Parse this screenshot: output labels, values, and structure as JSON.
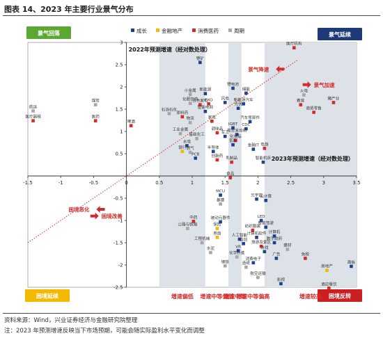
{
  "title": "图表 14、2023 年主要行业景气分布",
  "source": "资料来源：Wind，兴业证券经济与金融研究院整理",
  "note": "注：2023 年预测增速反映当下市场预期，可能会随实际盈利水平变化而调整",
  "colors": {
    "growth": "#1f3f8f",
    "finance": "#f5b800",
    "consumer": "#d42a2a",
    "cyclical": "#a6a6a6",
    "shade": "#dde2e8",
    "quad_tl": "#5aa832",
    "quad_tr": "#1f3a78",
    "quad_bl": "#f5b800",
    "quad_br": "#cc1f1f",
    "annotation": "#d42a2a"
  },
  "chart_data": {
    "type": "scatter",
    "xlim": [
      -1.5,
      3.5
    ],
    "ylim": [
      -2.5,
      3
    ],
    "x_ticks": [
      -1.5,
      -1,
      -0.5,
      0,
      0.5,
      1,
      1.5,
      2,
      2.5,
      3,
      3.5
    ],
    "y_ticks": [
      -2.5,
      -2,
      -1.5,
      -1,
      -0.5,
      0.5,
      1,
      1.5,
      2,
      2.5,
      3
    ],
    "x_tick_labels": [
      "-1.5",
      "-1",
      "-0.5",
      "0",
      "0.5",
      "1",
      "1.5",
      "2",
      "2.5",
      "3",
      "3.5"
    ],
    "y_tick_labels": [
      "-2.5",
      "-2",
      "-1.5",
      "-1",
      "-0.5",
      "0.5",
      "1",
      "1.5",
      "2",
      "2.5",
      "3"
    ],
    "xlabel": "2023年预测增速（经对数处理）",
    "ylabel": "2022年预测增速（经对数处理）",
    "legend": [
      {
        "key": "growth",
        "label": "成长"
      },
      {
        "key": "finance",
        "label": "金融地产"
      },
      {
        "key": "consumer",
        "label": "消费医药"
      },
      {
        "key": "cyclical",
        "label": "周期"
      }
    ],
    "quadrants": {
      "top_left": "景气回落",
      "top_right": "景气延续",
      "bottom_left": "困境延续",
      "bottom_right": "困境反转"
    },
    "annotations": [
      {
        "text": "景气降速",
        "x": 1.85,
        "y": 2.4
      },
      {
        "text": "景气加速",
        "x": 2.85,
        "y": 2.05
      },
      {
        "text": "困境恶化",
        "x": -0.88,
        "y": -0.75
      },
      {
        "text": "困境改善",
        "x": -0.38,
        "y": -0.9
      }
    ],
    "bands": [
      {
        "x0": 0.5,
        "x1": 1.2,
        "label": "增速偏低"
      },
      {
        "x0": 1.2,
        "x1": 1.55,
        "label": "增速中等偏低"
      },
      {
        "x0": 1.55,
        "x1": 1.75,
        "label": "增速中等"
      },
      {
        "x0": 1.75,
        "x1": 2.1,
        "label": "增速中等偏高"
      },
      {
        "x0": 2.1,
        "x1": 3.5,
        "label": "增速较高"
      }
    ],
    "reference_line": {
      "x0": -1.5,
      "y0": -1.5,
      "x1": 2.6,
      "y1": 2.6
    },
    "points": [
      {
        "label": "航运",
        "x": -1.42,
        "y": 1.46,
        "category": "cyclical"
      },
      {
        "label": "医疗器械",
        "x": -1.42,
        "y": 1.24,
        "category": "consumer"
      },
      {
        "label": "煤炭",
        "x": -0.47,
        "y": 1.6,
        "category": "cyclical"
      },
      {
        "label": "医药",
        "x": -0.47,
        "y": 1.24,
        "category": "consumer"
      },
      {
        "label": "啤酒",
        "x": 0.07,
        "y": 1.13,
        "category": "consumer"
      },
      {
        "label": "锂矿",
        "x": 1.12,
        "y": 2.55,
        "category": "growth"
      },
      {
        "label": "小金属",
        "x": 0.97,
        "y": 1.83,
        "category": "cyclical"
      },
      {
        "label": "化肥农药",
        "x": 0.97,
        "y": 1.63,
        "category": "cyclical"
      },
      {
        "label": "白色家电",
        "x": 1.12,
        "y": 1.6,
        "category": "consumer"
      },
      {
        "label": "石油石化",
        "x": 0.65,
        "y": 1.4,
        "category": "cyclical"
      },
      {
        "label": "原料药",
        "x": 0.85,
        "y": 1.33,
        "category": "consumer"
      },
      {
        "label": "物流",
        "x": 0.97,
        "y": 1.2,
        "category": "cyclical"
      },
      {
        "label": "工业金属",
        "x": 0.82,
        "y": 0.95,
        "category": "cyclical"
      },
      {
        "label": "基础化工",
        "x": 1.07,
        "y": 0.84,
        "category": "cyclical"
      },
      {
        "label": "水电",
        "x": 0.92,
        "y": 0.68,
        "category": "growth"
      },
      {
        "label": "银行",
        "x": 0.85,
        "y": 0.55,
        "category": "finance"
      },
      {
        "label": "燃气",
        "x": 0.97,
        "y": 0.53,
        "category": "cyclical"
      },
      {
        "label": "PCB",
        "x": 1.05,
        "y": 0.4,
        "category": "growth"
      },
      {
        "label": "新能源",
        "x": 1.2,
        "y": 1.85,
        "category": "growth"
      },
      {
        "label": "CXO",
        "x": 1.25,
        "y": 1.62,
        "category": "consumer"
      },
      {
        "label": "智能电网",
        "x": 1.2,
        "y": 1.45,
        "category": "growth"
      },
      {
        "label": "家电",
        "x": 1.3,
        "y": 1.23,
        "category": "consumer"
      },
      {
        "label": "调味品",
        "x": 1.38,
        "y": 0.97,
        "category": "consumer"
      },
      {
        "label": "半导体",
        "x": 1.32,
        "y": 0.55,
        "category": "growth"
      },
      {
        "label": "创新药",
        "x": 1.38,
        "y": 0.36,
        "category": "consumer"
      },
      {
        "label": "乳制品",
        "x": 1.6,
        "y": 0.31,
        "category": "consumer"
      },
      {
        "label": "食品",
        "x": 1.58,
        "y": -0.04,
        "category": "consumer"
      },
      {
        "label": "锂电池",
        "x": 1.62,
        "y": 1.97,
        "category": "growth"
      },
      {
        "label": "储能",
        "x": 1.82,
        "y": 1.86,
        "category": "growth"
      },
      {
        "label": "新能源汽车",
        "x": 1.78,
        "y": 1.62,
        "category": "growth"
      },
      {
        "label": "光伏",
        "x": 1.7,
        "y": 1.52,
        "category": "growth"
      },
      {
        "label": "风电",
        "x": 1.5,
        "y": 1.65,
        "category": "growth"
      },
      {
        "label": "汽车零部件",
        "x": 1.88,
        "y": 1.22,
        "category": "growth"
      },
      {
        "label": "IGBT",
        "x": 1.62,
        "y": 1.08,
        "category": "growth"
      },
      {
        "label": "CDC",
        "x": 1.82,
        "y": 1.06,
        "category": "growth"
      },
      {
        "label": "航空发动机",
        "x": 1.68,
        "y": 0.93,
        "category": "growth"
      },
      {
        "label": "化妆品",
        "x": 1.66,
        "y": 0.8,
        "category": "consumer"
      },
      {
        "label": "军工",
        "x": 1.5,
        "y": 0.89,
        "category": "growth"
      },
      {
        "label": "氢能",
        "x": 1.62,
        "y": 0.7,
        "category": "growth"
      },
      {
        "label": "金融IT",
        "x": 1.93,
        "y": 0.6,
        "category": "growth"
      },
      {
        "label": "电商",
        "x": 2.1,
        "y": 0.62,
        "category": "consumer"
      },
      {
        "label": "智能机床",
        "x": 2.08,
        "y": 0.31,
        "category": "growth"
      },
      {
        "label": "医疗机构",
        "x": 2.55,
        "y": 2.88,
        "category": "consumer"
      },
      {
        "label": "火电",
        "x": 2.7,
        "y": 1.82,
        "category": "cyclical"
      },
      {
        "label": "教育",
        "x": 2.65,
        "y": 1.6,
        "category": "consumer"
      },
      {
        "label": "猪产业",
        "x": 3.15,
        "y": 1.65,
        "category": "consumer"
      },
      {
        "label": "商贸零售",
        "x": 2.85,
        "y": 1.43,
        "category": "consumer"
      },
      {
        "label": "MCU",
        "x": 1.43,
        "y": -0.43,
        "category": "growth"
      },
      {
        "label": "基建",
        "x": 1.43,
        "y": -0.63,
        "category": "cyclical"
      },
      {
        "label": "元宇宙",
        "x": 1.98,
        "y": -0.52,
        "category": "growth"
      },
      {
        "label": "云计算",
        "x": 2.12,
        "y": -0.55,
        "category": "growth"
      },
      {
        "label": "中药",
        "x": 1.02,
        "y": -1.02,
        "category": "consumer"
      },
      {
        "label": "公路与铁路",
        "x": 0.93,
        "y": -1.18,
        "category": "cyclical"
      },
      {
        "label": "被动元器件",
        "x": 1.43,
        "y": -1.03,
        "category": "growth"
      },
      {
        "label": "保险",
        "x": 1.38,
        "y": -1.18,
        "category": "finance"
      },
      {
        "label": "LED",
        "x": 2.05,
        "y": -1.0,
        "category": "growth"
      },
      {
        "label": "智能驾驶",
        "x": 2.12,
        "y": -1.15,
        "category": "growth"
      },
      {
        "label": "纺织服装",
        "x": 1.92,
        "y": -1.22,
        "category": "consumer"
      },
      {
        "label": "券商",
        "x": 1.38,
        "y": -1.38,
        "category": "finance"
      },
      {
        "label": "工程机械",
        "x": 1.15,
        "y": -1.5,
        "category": "cyclical"
      },
      {
        "label": "人工智能",
        "x": 1.72,
        "y": -1.42,
        "category": "growth"
      },
      {
        "label": "计算机软件",
        "x": 1.98,
        "y": -1.38,
        "category": "growth"
      },
      {
        "label": "计算机",
        "x": 2.25,
        "y": -1.35,
        "category": "growth"
      },
      {
        "label": "信创",
        "x": 1.78,
        "y": -1.52,
        "category": "growth"
      },
      {
        "label": "数字政府",
        "x": 2.25,
        "y": -1.5,
        "category": "growth"
      },
      {
        "label": "旅游及景区",
        "x": 2.05,
        "y": -1.58,
        "category": "consumer"
      },
      {
        "label": "水泥",
        "x": 1.28,
        "y": -1.72,
        "category": "cyclical"
      },
      {
        "label": "VR",
        "x": 1.7,
        "y": -1.68,
        "category": "growth"
      },
      {
        "label": "游戏",
        "x": 2.1,
        "y": -1.7,
        "category": "growth"
      },
      {
        "label": "建材",
        "x": 2.45,
        "y": -1.65,
        "category": "cyclical"
      },
      {
        "label": "化学纤维",
        "x": 1.68,
        "y": -1.82,
        "category": "cyclical"
      },
      {
        "label": "广告",
        "x": 2.28,
        "y": -1.85,
        "category": "growth"
      },
      {
        "label": "免税",
        "x": 2.72,
        "y": -1.85,
        "category": "consumer"
      },
      {
        "label": "消费电子",
        "x": 1.93,
        "y": -1.95,
        "category": "growth"
      },
      {
        "label": "钢铁",
        "x": 1.5,
        "y": -2.02,
        "category": "cyclical"
      },
      {
        "label": "造纸",
        "x": 1.82,
        "y": -2.05,
        "category": "cyclical"
      },
      {
        "label": "房地产",
        "x": 3.05,
        "y": -2.12,
        "category": "finance"
      },
      {
        "label": "面板",
        "x": 3.42,
        "y": -2.03,
        "category": "growth"
      },
      {
        "label": "航空运输",
        "x": 2.0,
        "y": -2.28,
        "category": "cyclical"
      },
      {
        "label": "影视",
        "x": 2.35,
        "y": -2.42,
        "category": "growth"
      },
      {
        "label": "酒店餐饮",
        "x": 3.08,
        "y": -2.52,
        "category": "consumer"
      }
    ]
  }
}
